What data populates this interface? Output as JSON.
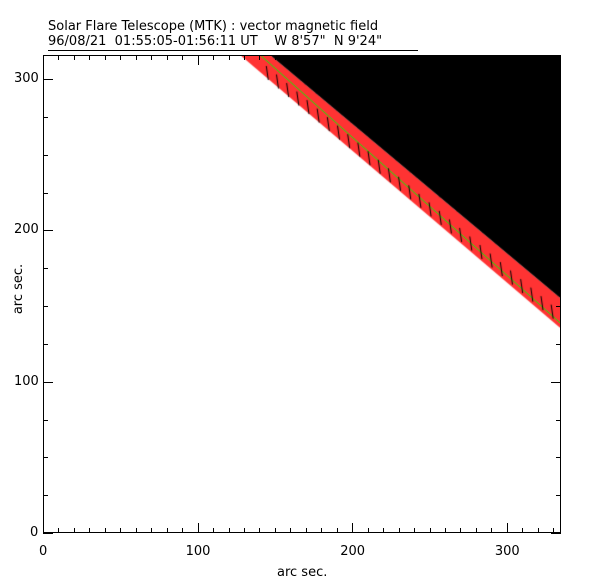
{
  "chart_data": {
    "type": "heatmap",
    "title": "Solar Flare Telescope (MTK) : vector magnetic field",
    "subtitle": "96/08/21  01:55:05-01:56:11 UT    W 8'57\"  N 9'24\"",
    "xlabel": "arc sec.",
    "ylabel": "arc sec.",
    "xlim": [
      0,
      335
    ],
    "ylim": [
      0,
      316
    ],
    "xticks": [
      0,
      100,
      200,
      300
    ],
    "yticks": [
      0,
      100,
      200,
      300
    ],
    "limb": {
      "points": [
        [
          147,
          316
        ],
        [
          335,
          155
        ]
      ],
      "outside_color": "#000000",
      "limb_line_color": "#00ff00"
    },
    "colors": {
      "positive": "#ff7777",
      "negative": "#7777ff",
      "limb_band": "#ff0000",
      "vectors": "#000000"
    }
  }
}
